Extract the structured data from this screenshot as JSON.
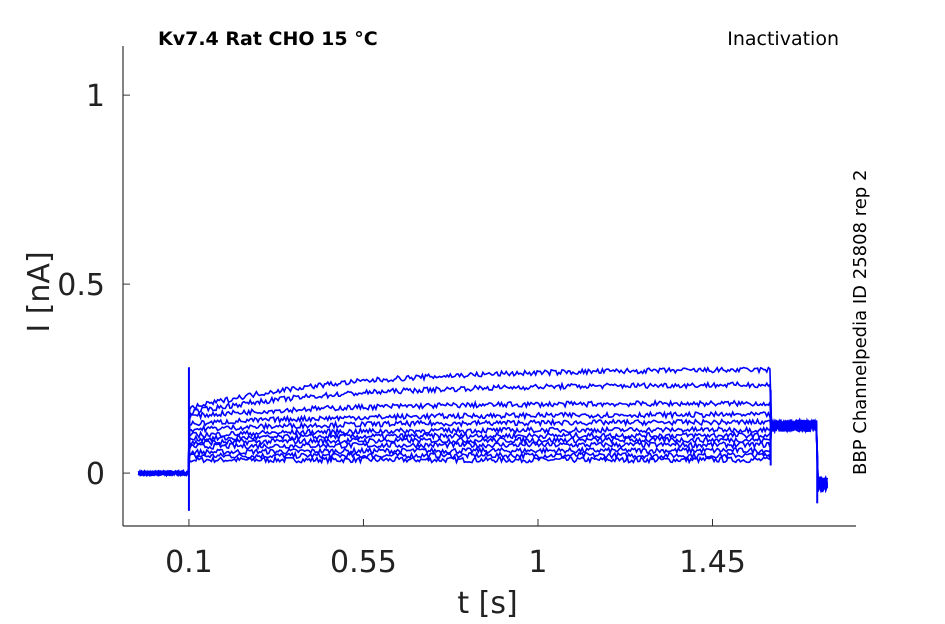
{
  "chart_data": {
    "type": "line",
    "title_left": "Kv7.4  Rat  CHO  15 °C",
    "title_right": "Inactivation",
    "side_label": "BBP Channelpedia ID 25808 rep 2",
    "xlabel": "t [s]",
    "ylabel": "I [nA]",
    "xticks": [
      0.1,
      0.55,
      1,
      1.45
    ],
    "xtick_labels": [
      "0.1",
      "0.55",
      "1",
      "1.45"
    ],
    "yticks": [
      0,
      0.5,
      1
    ],
    "ytick_labels": [
      "0",
      "0.5",
      "1"
    ],
    "xlim": [
      -0.07,
      1.82
    ],
    "ylim": [
      -0.14,
      1.13
    ],
    "color": "#0000ff",
    "grid": false,
    "trace_count": 12,
    "protocol": {
      "baseline_end": 0.1,
      "step_end": 1.6,
      "tail_end": 1.72,
      "trace_end": 1.75,
      "trace_start": -0.03
    },
    "series": [
      {
        "initial": 0.035,
        "final": 0.035
      },
      {
        "initial": 0.045,
        "final": 0.047
      },
      {
        "initial": 0.055,
        "final": 0.06
      },
      {
        "initial": 0.07,
        "final": 0.075
      },
      {
        "initial": 0.08,
        "final": 0.088
      },
      {
        "initial": 0.09,
        "final": 0.1
      },
      {
        "initial": 0.1,
        "final": 0.115
      },
      {
        "initial": 0.115,
        "final": 0.135
      },
      {
        "initial": 0.13,
        "final": 0.155
      },
      {
        "initial": 0.15,
        "final": 0.185
      },
      {
        "initial": 0.16,
        "final": 0.235
      },
      {
        "initial": 0.17,
        "final": 0.275
      }
    ]
  }
}
